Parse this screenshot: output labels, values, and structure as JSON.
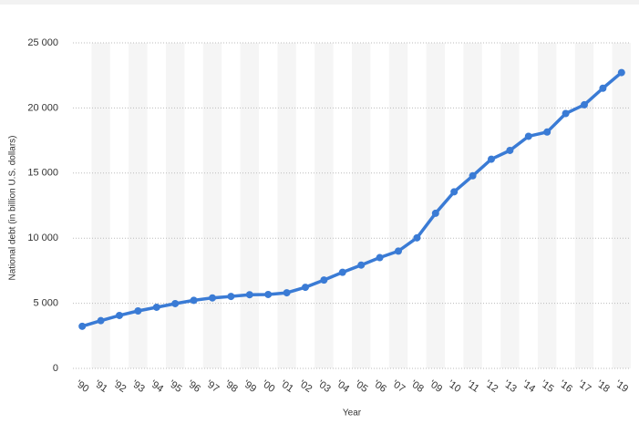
{
  "chart_data": {
    "type": "line",
    "x_label": "Year",
    "y_label": "National debt (in billion U.S. dollars)",
    "categories": [
      "'90",
      "'91",
      "'92",
      "'93",
      "'94",
      "'95",
      "'96",
      "'97",
      "'98",
      "'99",
      "'00",
      "'01",
      "'02",
      "'03",
      "'04",
      "'05",
      "'06",
      "'07",
      "'08",
      "'09",
      "'10",
      "'11",
      "'12",
      "'13",
      "'14",
      "'15",
      "'16",
      "'17",
      "'18",
      "'19"
    ],
    "series": [
      {
        "color": "#3a7bd5",
        "values": [
          3233,
          3665,
          4065,
          4411,
          4693,
          4974,
          5225,
          5413,
          5526,
          5656,
          5674,
          5807,
          6228,
          6783,
          7379,
          7933,
          8507,
          9008,
          10025,
          11910,
          13562,
          14790,
          16066,
          16738,
          17824,
          18151,
          19573,
          20245,
          21516,
          22719
        ]
      }
    ],
    "ylim": [
      0,
      25000
    ],
    "yticks": [
      0,
      {
        "value": 5000,
        "label": "5 000"
      },
      {
        "value": 10000,
        "label": "10 000"
      },
      {
        "value": 15000,
        "label": "15 000"
      },
      {
        "value": 20000,
        "label": "20 000"
      },
      {
        "value": 25000,
        "label": "25 000"
      }
    ],
    "grid": true
  }
}
